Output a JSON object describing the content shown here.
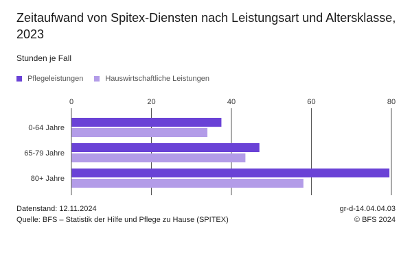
{
  "title": "Zeitaufwand von Spitex-Diensten nach Leistungsart und Altersklasse, 2023",
  "subtitle": "Stunden je Fall",
  "colors": {
    "series1": "#6a42d6",
    "series2": "#b39ce8",
    "grid": "#555555"
  },
  "chart_data": {
    "type": "bar",
    "orientation": "horizontal",
    "categories": [
      "0-64 Jahre",
      "65-79 Jahre",
      "80+ Jahre"
    ],
    "series": [
      {
        "name": "Pflegeleistungen",
        "values": [
          37.5,
          47,
          79.5
        ]
      },
      {
        "name": "Hauswirtschaftliche Leistungen",
        "values": [
          34,
          43.5,
          58
        ]
      }
    ],
    "xlim": [
      0,
      80
    ],
    "ticks": [
      "0",
      "20",
      "40",
      "60",
      "80"
    ],
    "legend": "top-left",
    "grid": true
  },
  "footer": {
    "date_label": "Datenstand: 12.11.2024",
    "source": "Quelle: BFS – Statistik der Hilfe und Pflege zu Hause (SPITEX)",
    "code": "gr-d-14.04.04.03",
    "copyright": "© BFS 2024"
  }
}
